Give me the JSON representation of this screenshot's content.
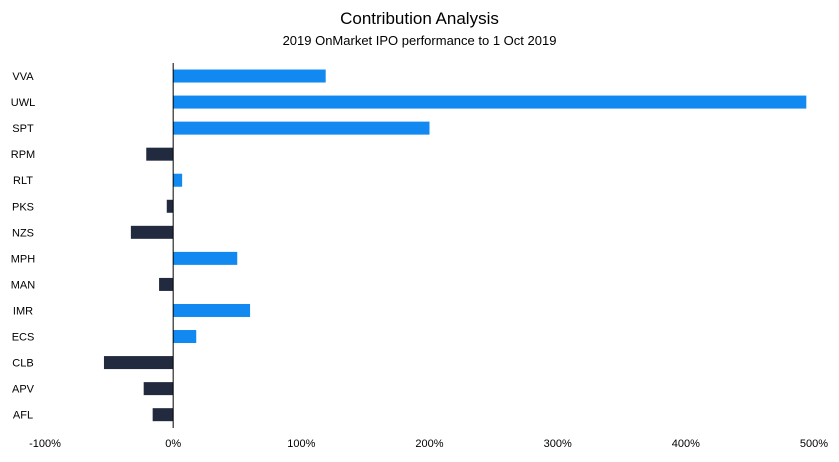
{
  "chart_data": {
    "type": "bar",
    "orientation": "horizontal",
    "title": "Contribution Analysis",
    "subtitle": "2019 OnMarket IPO performance to 1 Oct 2019",
    "categories": [
      "VVA",
      "UWL",
      "SPT",
      "RPM",
      "RLT",
      "PKS",
      "NZS",
      "MPH",
      "MAN",
      "IMR",
      "ECS",
      "CLB",
      "APV",
      "AFL"
    ],
    "values": [
      119,
      494,
      200,
      -21,
      7,
      -5,
      -33,
      50,
      -11,
      60,
      18,
      -54,
      -23,
      -16
    ],
    "xlim": [
      -100,
      500
    ],
    "xticks": [
      -100,
      0,
      100,
      200,
      300,
      400,
      500
    ],
    "xtick_labels": [
      "-100%",
      "0%",
      "100%",
      "200%",
      "300%",
      "400%",
      "500%"
    ],
    "grid": false,
    "colors": {
      "positive": "#1289F0",
      "negative": "#222A40"
    }
  }
}
